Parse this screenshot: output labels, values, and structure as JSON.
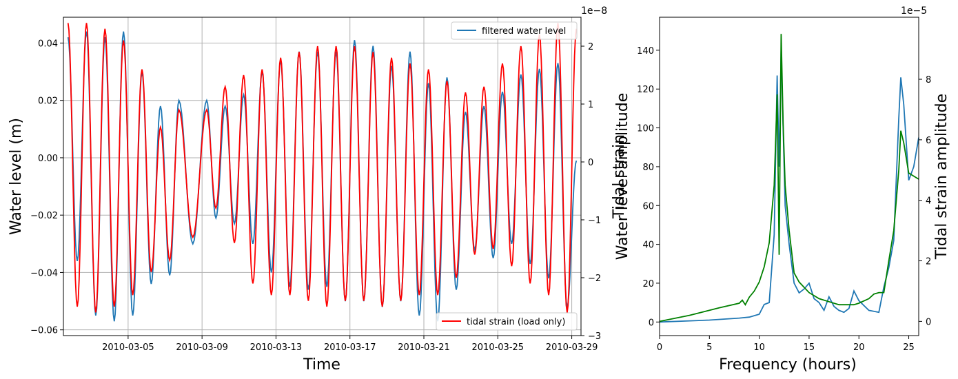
{
  "colors": {
    "water": "#1f77b4",
    "strain_left": "#ff0000",
    "strain_right": "#008000",
    "grid": "#b0b0b0",
    "axis": "#000000"
  },
  "chart_data": [
    {
      "type": "line",
      "xlabel": "Time",
      "ylabel": "Water level (m)",
      "y2label": "Tidal strain",
      "y2_offset_text": "1e−8",
      "grid": true,
      "legend_top": "filtered water level",
      "legend_bottom": "tidal strain (load only)",
      "legend_top_placement": "upper right",
      "legend_bottom_placement": "lower right",
      "xlim": [
        "2010-03-01 12:00",
        "2010-03-29 12:00"
      ],
      "xticks": [
        "2010-03-05",
        "2010-03-09",
        "2010-03-13",
        "2010-03-17",
        "2010-03-21",
        "2010-03-25",
        "2010-03-29"
      ],
      "ylim": [
        -0.062,
        0.049
      ],
      "yticks": [
        "0.04",
        "0.02",
        "0.00",
        "−0.02",
        "−0.04",
        "−0.06"
      ],
      "y2lim": [
        -3.0,
        2.5
      ],
      "y2ticks": [
        "2",
        "1",
        "0",
        "−1",
        "−2",
        "−3"
      ],
      "series": [
        {
          "name": "filtered water level",
          "axis": "left",
          "peaks": [
            [
              "2010-03-01 18:00",
              0.042
            ],
            [
              "2010-03-02 06:00",
              -0.036
            ],
            [
              "2010-03-02 18:00",
              0.044
            ],
            [
              "2010-03-03 06:00",
              -0.055
            ],
            [
              "2010-03-03 18:00",
              0.042
            ],
            [
              "2010-03-04 06:00",
              -0.057
            ],
            [
              "2010-03-04 18:00",
              0.044
            ],
            [
              "2010-03-05 06:00",
              -0.055
            ],
            [
              "2010-03-05 18:00",
              0.03
            ],
            [
              "2010-03-06 06:00",
              -0.044
            ],
            [
              "2010-03-06 18:00",
              0.018
            ],
            [
              "2010-03-07 06:00",
              -0.041
            ],
            [
              "2010-03-07 18:00",
              0.02
            ],
            [
              "2010-03-08 12:00",
              -0.03
            ],
            [
              "2010-03-09 06:00",
              0.02
            ],
            [
              "2010-03-09 18:00",
              -0.021
            ],
            [
              "2010-03-10 06:00",
              0.018
            ],
            [
              "2010-03-10 18:00",
              -0.023
            ],
            [
              "2010-03-11 06:00",
              0.022
            ],
            [
              "2010-03-11 18:00",
              -0.03
            ],
            [
              "2010-03-12 06:00",
              0.03
            ],
            [
              "2010-03-12 18:00",
              -0.04
            ],
            [
              "2010-03-13 06:00",
              0.034
            ],
            [
              "2010-03-13 18:00",
              -0.045
            ],
            [
              "2010-03-14 06:00",
              0.037
            ],
            [
              "2010-03-14 18:00",
              -0.046
            ],
            [
              "2010-03-15 06:00",
              0.037
            ],
            [
              "2010-03-15 18:00",
              -0.045
            ],
            [
              "2010-03-16 06:00",
              0.037
            ],
            [
              "2010-03-16 18:00",
              -0.05
            ],
            [
              "2010-03-17 06:00",
              0.041
            ],
            [
              "2010-03-17 18:00",
              -0.05
            ],
            [
              "2010-03-18 06:00",
              0.039
            ],
            [
              "2010-03-18 18:00",
              -0.052
            ],
            [
              "2010-03-19 06:00",
              0.032
            ],
            [
              "2010-03-19 18:00",
              -0.05
            ],
            [
              "2010-03-20 06:00",
              0.037
            ],
            [
              "2010-03-20 18:00",
              -0.055
            ],
            [
              "2010-03-21 06:00",
              0.026
            ],
            [
              "2010-03-21 18:00",
              -0.057
            ],
            [
              "2010-03-22 06:00",
              0.028
            ],
            [
              "2010-03-22 18:00",
              -0.046
            ],
            [
              "2010-03-23 06:00",
              0.016
            ],
            [
              "2010-03-23 18:00",
              -0.032
            ],
            [
              "2010-03-24 06:00",
              0.018
            ],
            [
              "2010-03-24 18:00",
              -0.035
            ],
            [
              "2010-03-25 06:00",
              0.023
            ],
            [
              "2010-03-25 18:00",
              -0.03
            ],
            [
              "2010-03-26 06:00",
              0.029
            ],
            [
              "2010-03-26 18:00",
              -0.037
            ],
            [
              "2010-03-27 06:00",
              0.031
            ],
            [
              "2010-03-27 18:00",
              -0.042
            ],
            [
              "2010-03-28 06:00",
              0.033
            ],
            [
              "2010-03-28 18:00",
              -0.052
            ],
            [
              "2010-03-29 06:00",
              -0.001
            ]
          ]
        },
        {
          "name": "tidal strain (load only)",
          "axis": "right",
          "peaks": [
            [
              "2010-03-01 18:00",
              2.4
            ],
            [
              "2010-03-02 06:00",
              -2.5
            ],
            [
              "2010-03-02 18:00",
              2.4
            ],
            [
              "2010-03-03 06:00",
              -2.6
            ],
            [
              "2010-03-03 18:00",
              2.3
            ],
            [
              "2010-03-04 06:00",
              -2.5
            ],
            [
              "2010-03-04 18:00",
              2.1
            ],
            [
              "2010-03-05 06:00",
              -2.3
            ],
            [
              "2010-03-05 18:00",
              1.6
            ],
            [
              "2010-03-06 06:00",
              -1.9
            ],
            [
              "2010-03-06 18:00",
              0.6
            ],
            [
              "2010-03-07 06:00",
              -1.7
            ],
            [
              "2010-03-07 18:00",
              0.9
            ],
            [
              "2010-03-08 12:00",
              -1.3
            ],
            [
              "2010-03-09 06:00",
              0.9
            ],
            [
              "2010-03-09 18:00",
              -0.8
            ],
            [
              "2010-03-10 06:00",
              1.3
            ],
            [
              "2010-03-10 18:00",
              -1.4
            ],
            [
              "2010-03-11 06:00",
              1.5
            ],
            [
              "2010-03-11 18:00",
              -2.1
            ],
            [
              "2010-03-12 06:00",
              1.6
            ],
            [
              "2010-03-12 18:00",
              -2.3
            ],
            [
              "2010-03-13 06:00",
              1.8
            ],
            [
              "2010-03-13 18:00",
              -2.3
            ],
            [
              "2010-03-14 06:00",
              1.9
            ],
            [
              "2010-03-14 18:00",
              -2.4
            ],
            [
              "2010-03-15 06:00",
              2.0
            ],
            [
              "2010-03-15 18:00",
              -2.5
            ],
            [
              "2010-03-16 06:00",
              2.0
            ],
            [
              "2010-03-16 18:00",
              -2.4
            ],
            [
              "2010-03-17 06:00",
              2.0
            ],
            [
              "2010-03-17 18:00",
              -2.4
            ],
            [
              "2010-03-18 06:00",
              1.9
            ],
            [
              "2010-03-18 18:00",
              -2.5
            ],
            [
              "2010-03-19 06:00",
              1.8
            ],
            [
              "2010-03-19 18:00",
              -2.4
            ],
            [
              "2010-03-20 06:00",
              1.7
            ],
            [
              "2010-03-20 18:00",
              -2.3
            ],
            [
              "2010-03-21 06:00",
              1.6
            ],
            [
              "2010-03-21 18:00",
              -2.3
            ],
            [
              "2010-03-22 06:00",
              1.4
            ],
            [
              "2010-03-22 18:00",
              -2.0
            ],
            [
              "2010-03-23 06:00",
              1.2
            ],
            [
              "2010-03-23 18:00",
              -1.6
            ],
            [
              "2010-03-24 06:00",
              1.3
            ],
            [
              "2010-03-24 18:00",
              -1.5
            ],
            [
              "2010-03-25 06:00",
              1.7
            ],
            [
              "2010-03-25 18:00",
              -1.8
            ],
            [
              "2010-03-26 06:00",
              2.0
            ],
            [
              "2010-03-26 18:00",
              -2.1
            ],
            [
              "2010-03-27 06:00",
              2.2
            ],
            [
              "2010-03-27 18:00",
              -2.3
            ],
            [
              "2010-03-28 06:00",
              2.4
            ],
            [
              "2010-03-28 18:00",
              -2.6
            ],
            [
              "2010-03-29 06:00",
              2.3
            ]
          ]
        }
      ]
    },
    {
      "type": "line",
      "xlabel": "Frequency (hours)",
      "ylabel": "Water level amplitude",
      "y2label": "Tidal strain amplitude",
      "y2_offset_text": "1e−5",
      "grid": false,
      "xlim": [
        0,
        26
      ],
      "xticks": [
        "0",
        "5",
        "10",
        "15",
        "20",
        "25"
      ],
      "ylim": [
        -7,
        157
      ],
      "yticks": [
        "140",
        "120",
        "100",
        "80",
        "60",
        "40",
        "20",
        "0"
      ],
      "y2lim": [
        -0.47,
        10.05
      ],
      "y2ticks": [
        "8",
        "6",
        "4",
        "2",
        "0"
      ],
      "series": [
        {
          "name": "Water level amplitude",
          "axis": "left",
          "x": [
            0,
            5,
            8,
            9,
            10,
            10.5,
            11,
            11.5,
            11.8,
            12.0,
            12.2,
            12.4,
            12.6,
            13.0,
            13.5,
            14.0,
            14.5,
            15.0,
            15.5,
            16.0,
            16.5,
            17.0,
            17.5,
            18.0,
            18.5,
            19.0,
            19.5,
            20.0,
            21.0,
            22.0,
            22.5,
            23.0,
            23.5,
            24.0,
            24.2,
            24.5,
            25.0,
            25.5,
            26.0
          ],
          "y": [
            0,
            1,
            2,
            2.5,
            4,
            9,
            10,
            45,
            127,
            80,
            140,
            100,
            60,
            40,
            20,
            15,
            17,
            20,
            12,
            10,
            6,
            13,
            8,
            6,
            5,
            7,
            16,
            11,
            6,
            5,
            18,
            28,
            42,
            105,
            126,
            112,
            73,
            80,
            95
          ]
        },
        {
          "name": "Tidal strain amplitude",
          "axis": "right",
          "x": [
            0,
            3,
            6,
            8,
            8.3,
            8.6,
            9,
            9.5,
            10,
            10.5,
            11,
            11.5,
            11.8,
            12.0,
            12.2,
            12.4,
            12.6,
            13.0,
            13.5,
            14.0,
            15.0,
            16.0,
            17.0,
            18.0,
            19.0,
            19.5,
            20.0,
            21.0,
            21.5,
            22.0,
            22.5,
            23.0,
            23.5,
            24.0,
            24.2,
            24.5,
            25.0,
            26.0
          ],
          "y": [
            0,
            0.2,
            0.45,
            0.6,
            0.7,
            0.55,
            0.8,
            1.0,
            1.3,
            1.8,
            2.6,
            4.5,
            7.5,
            2.2,
            9.5,
            6.5,
            4.5,
            3.0,
            1.6,
            1.3,
            0.95,
            0.75,
            0.65,
            0.55,
            0.55,
            0.55,
            0.6,
            0.75,
            0.9,
            0.95,
            0.95,
            2.0,
            3.0,
            5.0,
            6.3,
            5.9,
            4.9,
            4.7
          ]
        }
      ]
    }
  ]
}
